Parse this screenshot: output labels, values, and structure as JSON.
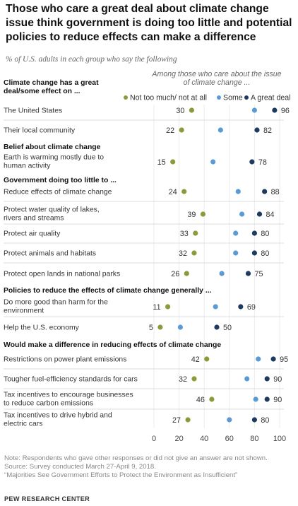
{
  "title": "Those who care a great deal about climate change issue think government is doing too little and potential policies to reduce effects can make a difference",
  "subtitle": "% of U.S. adults in each group who say the following",
  "legend": {
    "header": [
      "Among those who care about the issue",
      "of climate change ..."
    ],
    "items": [
      {
        "label": "Not too much/ not at all",
        "color": "#8c9a3a"
      },
      {
        "label": "Some",
        "color": "#5b9bd5"
      },
      {
        "label": "A great deal",
        "color": "#1f3a5f"
      }
    ]
  },
  "chart_data": {
    "type": "dot",
    "xlim": [
      0,
      100
    ],
    "xticks": [
      "0",
      "20",
      "40",
      "60",
      "80",
      "100"
    ],
    "series_names": [
      "Not too much/ not at all",
      "Some",
      "A great deal"
    ],
    "sections": [
      {
        "title": [
          "Climate change has a great",
          "deal/some effect on ..."
        ],
        "rows": [
          {
            "label": [
              "The United States"
            ],
            "values": [
              30,
              80,
              96
            ]
          },
          {
            "label": [
              "Their local community"
            ],
            "values": [
              22,
              53,
              82
            ]
          }
        ]
      },
      {
        "title": [
          "Belief about climate change"
        ],
        "rows": [
          {
            "label": [
              "Earth is warming mostly due to",
              "human activity"
            ],
            "values": [
              15,
              47,
              78
            ]
          }
        ]
      },
      {
        "title": [
          "Government doing too little to ..."
        ],
        "rows": [
          {
            "label": [
              "Reduce effects of climate change"
            ],
            "values": [
              24,
              67,
              88
            ]
          },
          {
            "label": [
              "Protect water quality of lakes,",
              "rivers and streams"
            ],
            "values": [
              39,
              70,
              84
            ]
          },
          {
            "label": [
              "Protect air quality"
            ],
            "values": [
              33,
              65,
              80
            ]
          },
          {
            "label": [
              "Protect animals and habitats"
            ],
            "values": [
              32,
              65,
              80
            ]
          },
          {
            "label": [
              "Protect open lands in national parks"
            ],
            "values": [
              26,
              54,
              75
            ]
          }
        ]
      },
      {
        "title": [
          "Policies to reduce the effects of climate change generally ..."
        ],
        "rows": [
          {
            "label": [
              "Do more good than harm for the",
              "environment"
            ],
            "values": [
              11,
              49,
              69
            ]
          },
          {
            "label": [
              "Help the U.S. economy"
            ],
            "values": [
              5,
              21,
              50
            ]
          }
        ]
      },
      {
        "title": [
          "Would make a difference in reducing effects of climate change"
        ],
        "rows": [
          {
            "label": [
              "Restrictions on power plant emissions"
            ],
            "values": [
              42,
              83,
              95
            ]
          },
          {
            "label": [
              "Tougher fuel-efficiency standards for cars"
            ],
            "values": [
              32,
              74,
              90
            ]
          },
          {
            "label": [
              "Tax incentives to encourage businesses",
              "to reduce carbon emissions"
            ],
            "values": [
              46,
              81,
              90
            ]
          },
          {
            "label": [
              "Tax incentives to drive hybrid and",
              "electric cars"
            ],
            "values": [
              27,
              60,
              80
            ]
          }
        ]
      }
    ]
  },
  "footer": {
    "note": "Note: Respondents who gave other responses or did not give an answer are not shown.",
    "source": "Source: Survey conducted March 27-April 9, 2018.",
    "report": "“Majorities See Government Efforts to Protect the Environment as Insufficient”",
    "brand": "PEW RESEARCH CENTER"
  }
}
